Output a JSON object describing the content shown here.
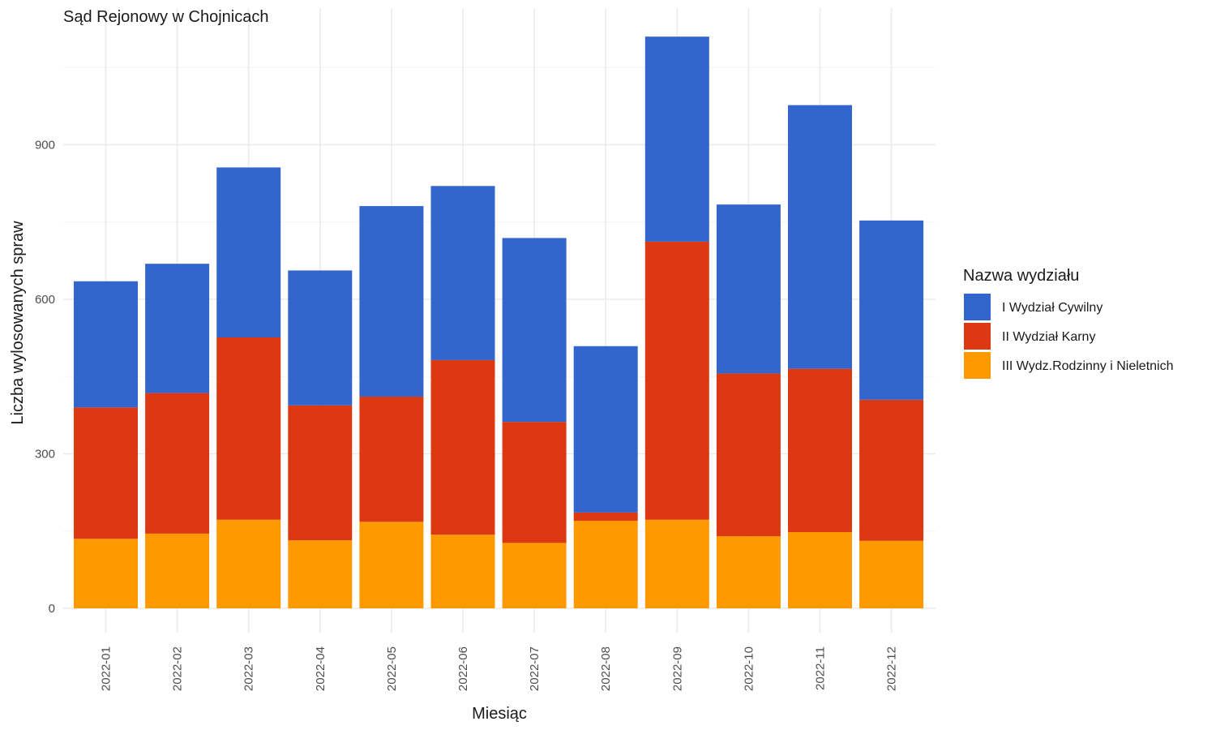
{
  "chart_data": {
    "type": "bar",
    "stacked": true,
    "title": "Sąd Rejonowy w Chojnicach",
    "xlabel": "Miesiąc",
    "ylabel": "Liczba wylosowanych spraw",
    "ylim": [
      0,
      1160
    ],
    "yticks": [
      0,
      300,
      600,
      900
    ],
    "ytick_labels": [
      "0",
      "300",
      "600",
      "900"
    ],
    "grid": true,
    "categories": [
      "2022-01",
      "2022-02",
      "2022-03",
      "2022-04",
      "2022-05",
      "2022-06",
      "2022-07",
      "2022-08",
      "2022-09",
      "2022-10",
      "2022-11",
      "2022-12"
    ],
    "legend": {
      "title": "Nazwa wydziału",
      "position": "right"
    },
    "series": [
      {
        "name": "III Wydz.Rodzinny i Nieletnich",
        "color": "#FF9900",
        "values": [
          135,
          145,
          172,
          132,
          168,
          143,
          127,
          170,
          172,
          140,
          148,
          131
        ]
      },
      {
        "name": "II Wydział Karny",
        "color": "#DC3912",
        "values": [
          255,
          273,
          354,
          262,
          243,
          339,
          235,
          16,
          540,
          316,
          317,
          274
        ]
      },
      {
        "name": "I Wydział Cywilny",
        "color": "#3366CC",
        "values": [
          245,
          251,
          330,
          262,
          370,
          338,
          357,
          323,
          398,
          328,
          512,
          348
        ]
      }
    ]
  }
}
